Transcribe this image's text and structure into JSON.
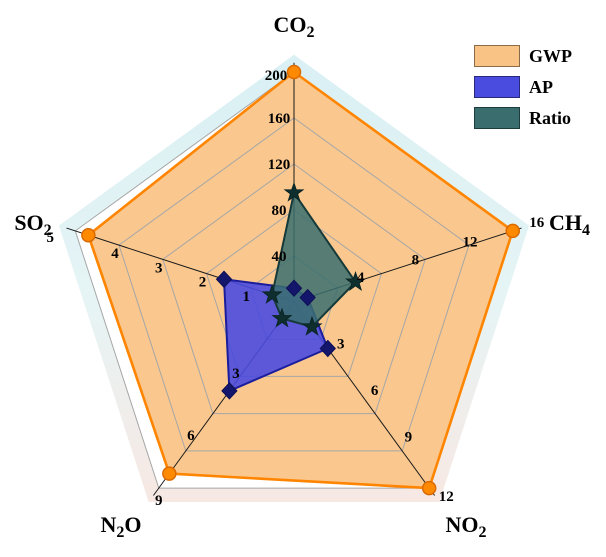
{
  "chart_data": {
    "type": "radar",
    "title": "",
    "axes": [
      {
        "label": "CO_2",
        "max": 200,
        "ticks": [
          40,
          80,
          120,
          160,
          200
        ]
      },
      {
        "label": "CH_4",
        "max": 16,
        "ticks": [
          4,
          8,
          12,
          16
        ]
      },
      {
        "label": "NO_2",
        "max": 12,
        "ticks": [
          3,
          6,
          9,
          12
        ]
      },
      {
        "label": "N_2O",
        "max": 9,
        "ticks": [
          3,
          6,
          9
        ]
      },
      {
        "label": "SO_2",
        "max": 5,
        "ticks": [
          1,
          2,
          3,
          4,
          5
        ]
      }
    ],
    "series": [
      {
        "name": "GWP",
        "values": [
          200,
          16,
          12,
          8.3,
          4.7
        ],
        "fill": "#FAC386",
        "fill_opacity": 0.92,
        "stroke": "#FF8500",
        "marker": "circle",
        "marker_color": "#FF8A00",
        "marker_edge": "#D96A00"
      },
      {
        "name": "AP",
        "values": [
          12,
          1,
          3,
          4.3,
          1.6
        ],
        "fill": "#4A4BDF",
        "fill_opacity": 0.9,
        "stroke": "#1B1D9C",
        "marker": "diamond",
        "marker_color": "#14166B",
        "marker_edge": "#0D0E55"
      },
      {
        "name": "Ratio",
        "values": [
          95,
          4.5,
          1.6,
          0.8,
          0.5
        ],
        "fill": "#3A6E6E",
        "fill_opacity": 0.85,
        "stroke": "#163A3A",
        "marker": "star",
        "marker_color": "#0F2F2F",
        "marker_edge": "#0A2424"
      }
    ],
    "legend": {
      "position": "top-right",
      "entries": [
        "GWP",
        "AP",
        "Ratio"
      ]
    },
    "grid": {
      "rings": 5,
      "ring_color": "#A6A6A6",
      "spoke_color": "#1a1a1a"
    },
    "background_glow": {
      "top": "#D9F0F4",
      "mid": "#E6F4F5",
      "bottom": "#F7E8E3"
    }
  }
}
